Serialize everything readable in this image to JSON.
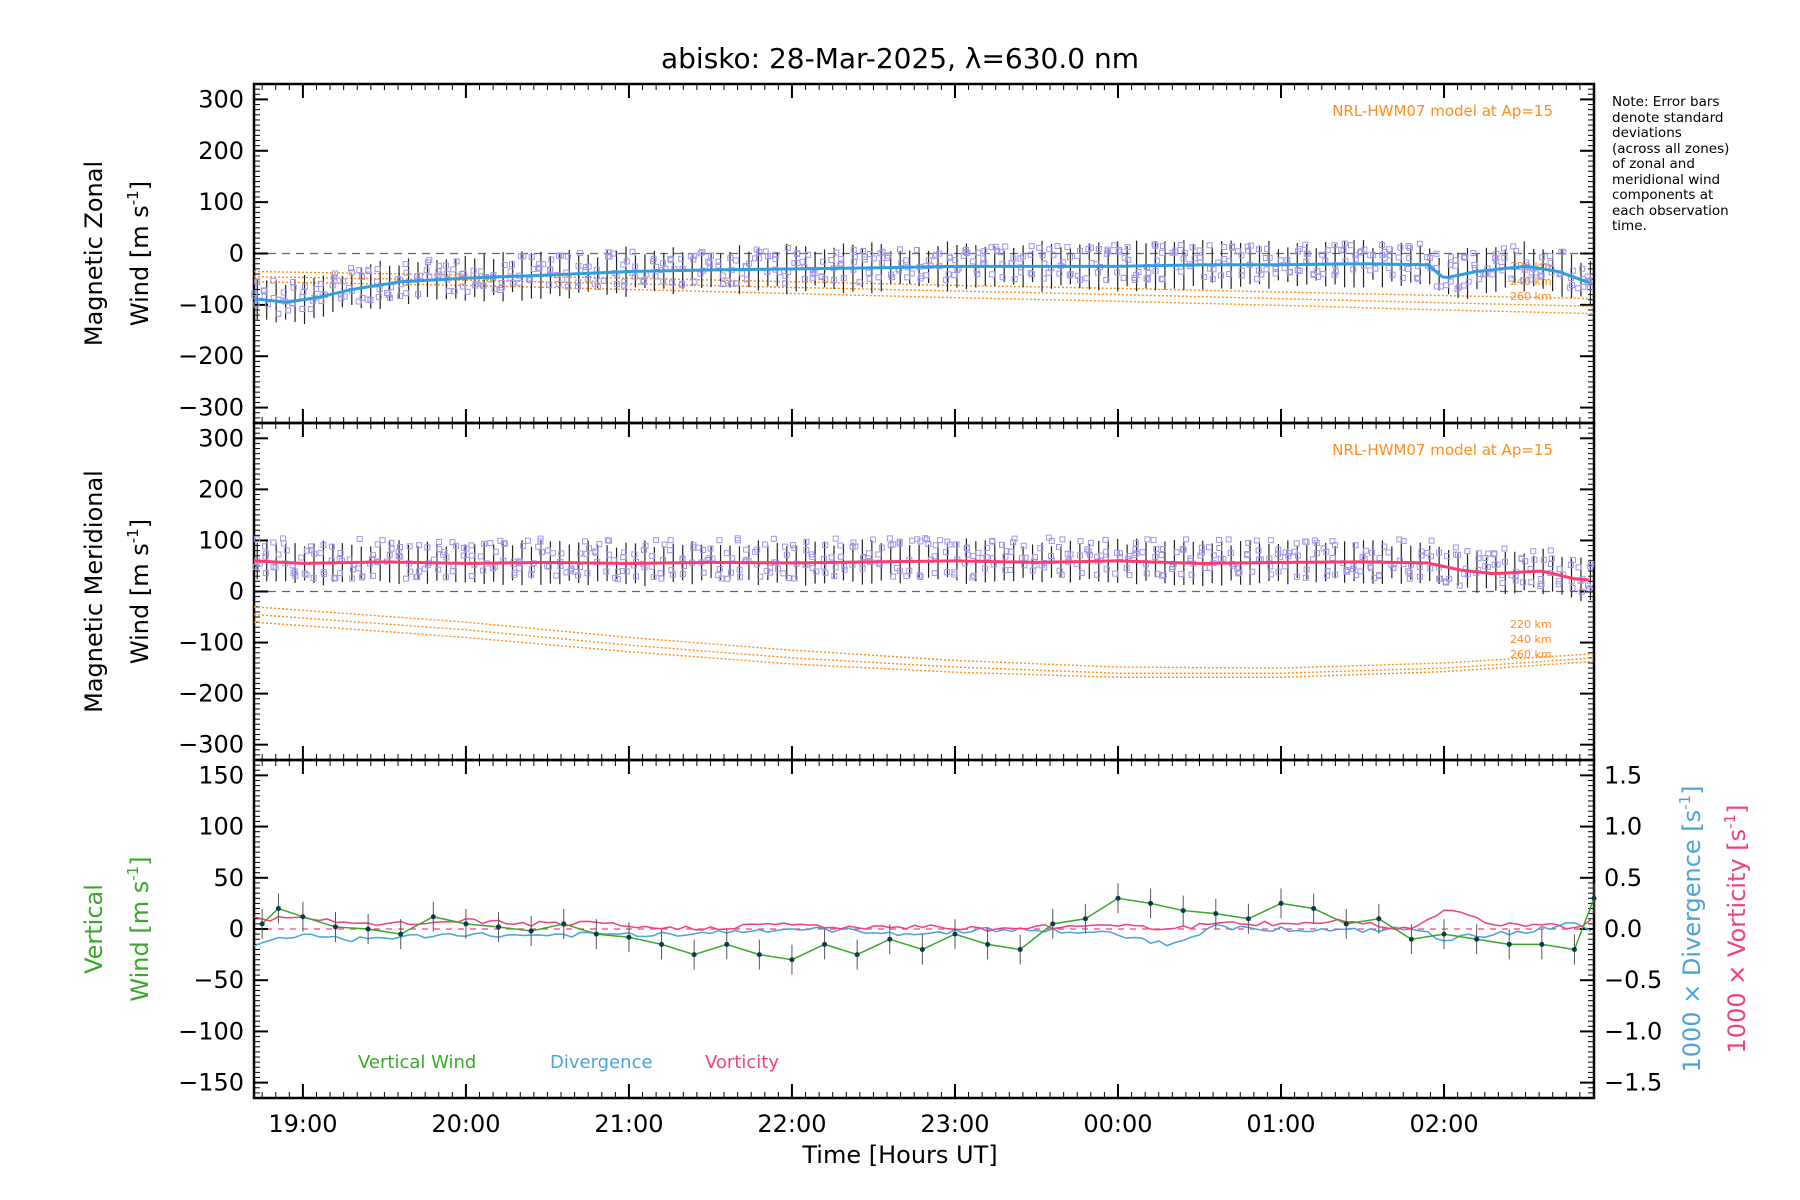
{
  "title": "abisko: 28-Mar-2025, λ=630.0 nm",
  "note": "Note: Error bars\ndenote standard\ndeviations\n(across all zones)\nof zonal and\nmeridional wind\ncomponents at\neach observation\ntime.",
  "xlabel": "Time [Hours UT]",
  "x_ticks": [
    "19:00",
    "20:00",
    "21:00",
    "22:00",
    "23:00",
    "00:00",
    "01:00",
    "02:00"
  ],
  "colors": {
    "zonal": "#2e9ee0",
    "meridional": "#ff3a6e",
    "model": "#ff8c1a",
    "vertical": "#39a82a",
    "divergence": "#4aa3d8",
    "vorticity": "#f0417f",
    "scatter": "#9d96e8",
    "errorbar": "#222222"
  },
  "chart_data": [
    {
      "type": "line",
      "name": "zonal",
      "ylabel": [
        "Magnetic Zonal",
        "Wind [m s",
        "-1",
        "]"
      ],
      "ylim": [
        -330,
        330
      ],
      "yticks": [
        300,
        200,
        100,
        0,
        -100,
        -200,
        -300
      ],
      "xlim_hours": [
        18.7,
        26.92
      ],
      "model_label": "NRL-HWM07 model at Ap=15",
      "model_series": [
        {
          "name": "220 km",
          "x": [
            18.7,
            20,
            21,
            22,
            23,
            24,
            25,
            26,
            26.92
          ],
          "values": [
            -35,
            -42,
            -48,
            -55,
            -62,
            -68,
            -75,
            -82,
            -88
          ]
        },
        {
          "name": "240 km",
          "x": [
            18.7,
            20,
            21,
            22,
            23,
            24,
            25,
            26,
            26.92
          ],
          "values": [
            -45,
            -52,
            -59,
            -66,
            -73,
            -80,
            -88,
            -96,
            -103
          ]
        },
        {
          "name": "260 km",
          "x": [
            18.7,
            20,
            21,
            22,
            23,
            24,
            25,
            26,
            26.92
          ],
          "values": [
            -55,
            -62,
            -70,
            -78,
            -86,
            -93,
            -101,
            -110,
            -117
          ]
        }
      ],
      "series": [
        {
          "name": "Magnetic Zonal Wind",
          "x": [
            18.7,
            18.9,
            19.1,
            19.3,
            19.6,
            20.0,
            20.5,
            21.0,
            21.5,
            22.0,
            22.5,
            23.0,
            23.5,
            24.0,
            24.5,
            25.0,
            25.5,
            25.9,
            26.0,
            26.2,
            26.5,
            26.7,
            26.92
          ],
          "values": [
            -88,
            -95,
            -85,
            -70,
            -55,
            -48,
            -42,
            -35,
            -32,
            -30,
            -28,
            -25,
            -25,
            -25,
            -22,
            -22,
            -20,
            -22,
            -48,
            -35,
            -25,
            -35,
            -60
          ]
        }
      ]
    },
    {
      "type": "line",
      "name": "meridional",
      "ylabel": [
        "Magnetic Meridional",
        "Wind [m s",
        "-1",
        "]"
      ],
      "ylim": [
        -330,
        330
      ],
      "yticks": [
        300,
        200,
        100,
        0,
        -100,
        -200,
        -300
      ],
      "xlim_hours": [
        18.7,
        26.92
      ],
      "model_label": "NRL-HWM07 model at Ap=15",
      "model_series": [
        {
          "name": "220 km",
          "x": [
            18.7,
            20,
            21,
            22,
            23,
            24,
            25,
            26,
            26.92
          ],
          "values": [
            -30,
            -60,
            -90,
            -115,
            -135,
            -148,
            -150,
            -140,
            -122
          ]
        },
        {
          "name": "240 km",
          "x": [
            18.7,
            20,
            21,
            22,
            23,
            24,
            25,
            26,
            26.92
          ],
          "values": [
            -45,
            -75,
            -105,
            -130,
            -148,
            -160,
            -160,
            -150,
            -130
          ]
        },
        {
          "name": "260 km",
          "x": [
            18.7,
            20,
            21,
            22,
            23,
            24,
            25,
            26,
            26.92
          ],
          "values": [
            -60,
            -90,
            -118,
            -142,
            -158,
            -168,
            -168,
            -157,
            -137
          ]
        }
      ],
      "series": [
        {
          "name": "Magnetic Meridional Wind",
          "x": [
            18.7,
            19.0,
            19.5,
            20.0,
            20.5,
            21.0,
            21.5,
            22.0,
            22.5,
            23.0,
            23.5,
            24.0,
            24.5,
            25.0,
            25.5,
            25.9,
            26.1,
            26.3,
            26.6,
            26.8,
            26.92
          ],
          "values": [
            60,
            55,
            58,
            55,
            57,
            55,
            57,
            56,
            58,
            60,
            57,
            60,
            55,
            57,
            58,
            56,
            42,
            35,
            40,
            25,
            22
          ]
        }
      ]
    },
    {
      "type": "line",
      "name": "vertical",
      "ylabel": [
        "Vertical",
        "Wind [m s",
        "-1",
        "]"
      ],
      "ylabel_right_div": [
        "1000 × Divergence [s",
        "-1",
        "]"
      ],
      "ylabel_right_vort": [
        "1000 × Vorticity [s",
        "-1",
        "]"
      ],
      "ylim": [
        -165,
        165
      ],
      "yticks": [
        150,
        100,
        50,
        0,
        -50,
        -100,
        -150
      ],
      "y2lim": [
        -1.65,
        1.65
      ],
      "y2ticks": [
        "1.5",
        "1.0",
        "0.5",
        "0.0",
        "−0.5",
        "−1.0",
        "−1.5"
      ],
      "y2tick_values": [
        1.5,
        1.0,
        0.5,
        0.0,
        -0.5,
        -1.0,
        -1.5
      ],
      "xlim_hours": [
        18.7,
        26.92
      ],
      "legend": [
        "Vertical Wind",
        "Divergence",
        "Vorticity"
      ],
      "series": [
        {
          "name": "Vertical Wind",
          "x": [
            18.75,
            18.85,
            19.0,
            19.2,
            19.4,
            19.6,
            19.8,
            20.0,
            20.2,
            20.4,
            20.6,
            20.8,
            21.0,
            21.2,
            21.4,
            21.6,
            21.8,
            22.0,
            22.2,
            22.4,
            22.6,
            22.8,
            23.0,
            23.2,
            23.4,
            23.6,
            23.8,
            24.0,
            24.2,
            24.4,
            24.6,
            24.8,
            25.0,
            25.2,
            25.4,
            25.6,
            25.8,
            26.0,
            26.2,
            26.4,
            26.6,
            26.8,
            26.92
          ],
          "values": [
            5,
            20,
            12,
            2,
            0,
            -5,
            12,
            5,
            2,
            -2,
            5,
            -5,
            -8,
            -15,
            -25,
            -15,
            -25,
            -30,
            -15,
            -25,
            -10,
            -20,
            -5,
            -15,
            -20,
            5,
            10,
            30,
            25,
            18,
            15,
            10,
            25,
            20,
            5,
            10,
            -10,
            -5,
            -10,
            -15,
            -15,
            -20,
            30
          ]
        },
        {
          "name": "Divergence",
          "x": [
            18.7,
            19.0,
            19.3,
            19.6,
            20.0,
            20.4,
            20.8,
            21.2,
            21.6,
            22.0,
            22.4,
            22.8,
            23.2,
            23.6,
            24.0,
            24.3,
            24.6,
            25.0,
            25.4,
            25.8,
            26.0,
            26.3,
            26.6,
            26.8,
            26.92
          ],
          "values": [
            -0.15,
            -0.05,
            -0.1,
            -0.08,
            -0.05,
            -0.08,
            -0.05,
            -0.05,
            -0.03,
            0.0,
            -0.02,
            -0.05,
            0.0,
            -0.02,
            -0.05,
            -0.15,
            0.02,
            0.0,
            -0.02,
            0.0,
            -0.1,
            -0.05,
            0.0,
            0.05,
            -0.05
          ]
        },
        {
          "name": "Vorticity",
          "x": [
            18.7,
            19.0,
            19.3,
            19.6,
            20.0,
            20.4,
            20.8,
            21.2,
            21.6,
            22.0,
            22.4,
            22.8,
            23.2,
            23.6,
            24.0,
            24.3,
            24.6,
            25.0,
            25.4,
            25.8,
            26.0,
            26.3,
            26.6,
            26.8,
            26.92
          ],
          "values": [
            0.1,
            0.1,
            0.05,
            0.05,
            0.08,
            0.05,
            0.05,
            0.0,
            0.02,
            0.05,
            0.0,
            0.03,
            0.0,
            0.02,
            0.05,
            0.0,
            0.05,
            0.05,
            0.08,
            0.0,
            0.2,
            0.05,
            0.05,
            0.0,
            0.1
          ]
        }
      ]
    }
  ]
}
